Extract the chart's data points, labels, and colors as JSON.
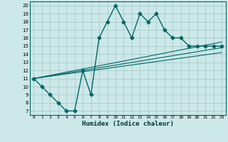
{
  "title": "",
  "xlabel": "Humidex (Indice chaleur)",
  "background_color": "#cce8e8",
  "grid_color": "#aacccc",
  "line_color": "#006666",
  "xlim": [
    -0.5,
    23.5
  ],
  "ylim": [
    6.5,
    20.5
  ],
  "xticks": [
    0,
    1,
    2,
    3,
    4,
    5,
    6,
    7,
    8,
    9,
    10,
    11,
    12,
    13,
    14,
    15,
    16,
    17,
    18,
    19,
    20,
    21,
    22,
    23
  ],
  "yticks": [
    7,
    8,
    9,
    10,
    11,
    12,
    13,
    14,
    15,
    16,
    17,
    18,
    19,
    20
  ],
  "main_x": [
    0,
    1,
    2,
    3,
    4,
    5,
    6,
    7,
    8,
    9,
    10,
    11,
    12,
    13,
    14,
    15,
    16,
    17,
    18,
    19,
    20,
    21,
    22,
    23
  ],
  "main_y": [
    11,
    10,
    9,
    8,
    7,
    7,
    12,
    9,
    16,
    18,
    20,
    18,
    16,
    19,
    18,
    19,
    17,
    16,
    16,
    15,
    15,
    15,
    15,
    15
  ],
  "line2_x": [
    0,
    23
  ],
  "line2_y": [
    11,
    15.5
  ],
  "line3_x": [
    0,
    23
  ],
  "line3_y": [
    11,
    14.8
  ],
  "line4_x": [
    0,
    23
  ],
  "line4_y": [
    11,
    14.2
  ]
}
